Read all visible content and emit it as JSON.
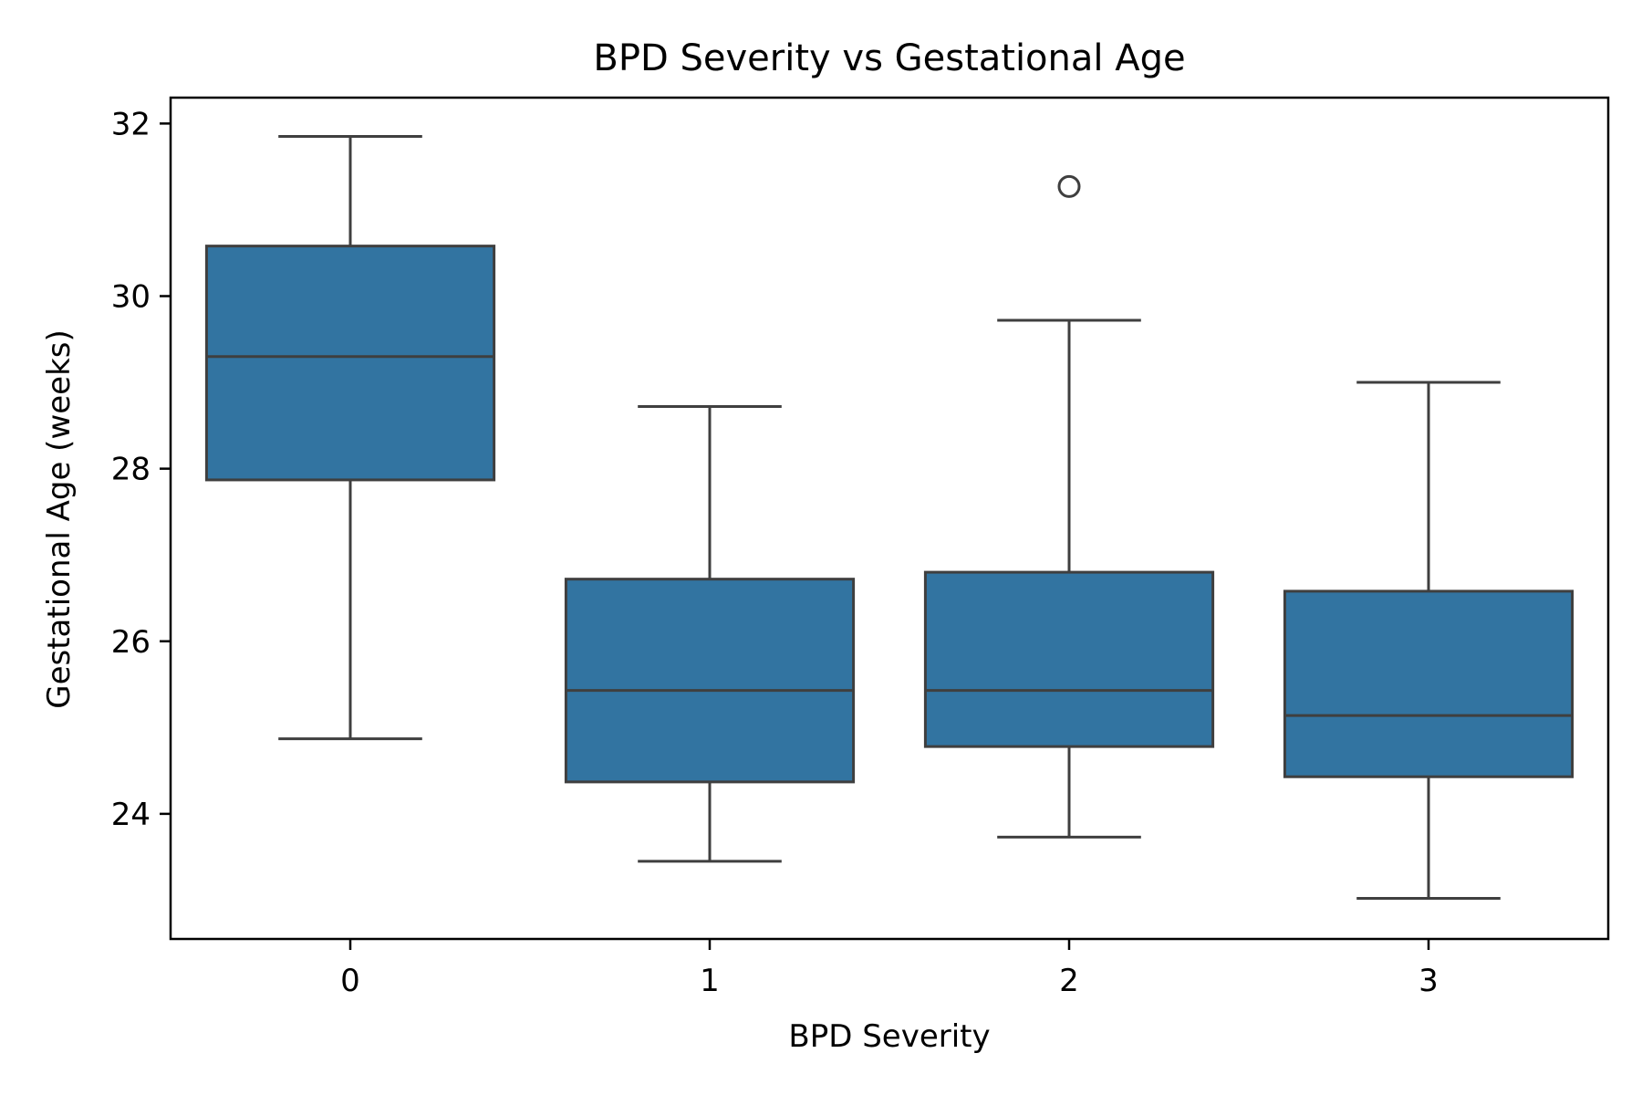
{
  "chart_data": {
    "type": "box",
    "title": "BPD Severity vs Gestational Age",
    "xlabel": "BPD Severity",
    "ylabel": "Gestational Age (weeks)",
    "categories": [
      "0",
      "1",
      "2",
      "3"
    ],
    "y_ticks": [
      24,
      26,
      28,
      30,
      32
    ],
    "y_tick_labels": [
      "24",
      "26",
      "28",
      "30",
      "32"
    ],
    "ylim": [
      22.55,
      32.3
    ],
    "grid": false,
    "colors": {
      "box_fill": "#3274a1",
      "box_line": "#3f3f3f",
      "axis": "#000000"
    },
    "boxes": [
      {
        "category": "0",
        "whisker_low": 24.87,
        "q1": 27.87,
        "median": 29.3,
        "q3": 30.58,
        "whisker_high": 31.85,
        "outliers": []
      },
      {
        "category": "1",
        "whisker_low": 23.45,
        "q1": 24.37,
        "median": 25.43,
        "q3": 26.72,
        "whisker_high": 28.72,
        "outliers": []
      },
      {
        "category": "2",
        "whisker_low": 23.73,
        "q1": 24.78,
        "median": 25.43,
        "q3": 26.8,
        "whisker_high": 29.72,
        "outliers": [
          31.27
        ]
      },
      {
        "category": "3",
        "whisker_low": 23.02,
        "q1": 24.43,
        "median": 25.14,
        "q3": 26.58,
        "whisker_high": 29.0,
        "outliers": []
      }
    ]
  }
}
